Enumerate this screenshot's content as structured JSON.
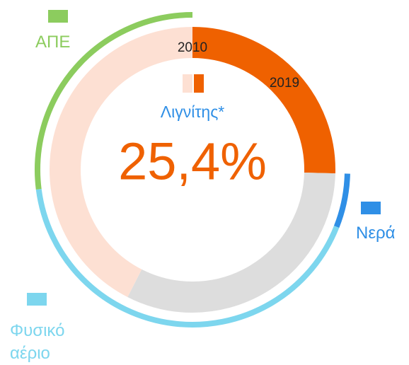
{
  "chart_data": {
    "type": "donut",
    "center_label": "Λιγνίτης*",
    "center_label_color": "#2f8fe6",
    "center_value": 25.4,
    "center_value_label": "25,4%",
    "center_value_color": "#ef6100",
    "inner_ring": [
      {
        "name": "2019",
        "color": "#ef6100",
        "value": 25.4
      },
      {
        "color": "#dddddd",
        "value": 32.1
      },
      {
        "name": "2010",
        "color": "#fde0d3",
        "value": 42.5
      }
    ],
    "outer_ring": [
      {
        "name": "Νερά",
        "color": "#2f8fe6",
        "value": 5.6
      },
      {
        "name": "Φυσικό αέριο",
        "color": "#7dd6ee",
        "value": 42
      },
      {
        "name": "ΑΠΕ",
        "color": "#8ccc5e",
        "value": 27
      }
    ]
  }
}
